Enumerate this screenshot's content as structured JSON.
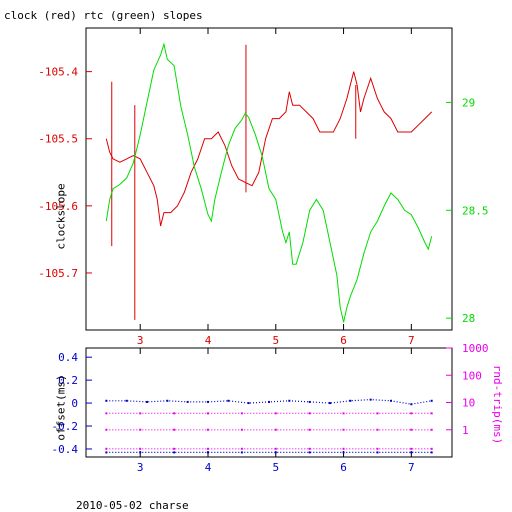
{
  "page": {
    "title": "clock (red) rtc (green) slopes",
    "footer": "2010-05-02 charse"
  },
  "colors": {
    "clock": "#dd0000",
    "rtc": "#00dd00",
    "offset": "#0000cc",
    "rndtrip": "#ee00ee",
    "axis": "#000000"
  },
  "chart_data": [
    {
      "type": "line",
      "title": "clock (red) rtc (green) slopes",
      "xlabel": "",
      "ylabel": "clockslope",
      "xlim": [
        2.2,
        7.6
      ],
      "ylim": [
        -105.785,
        -105.335
      ],
      "y2lim": [
        27.945,
        29.345
      ],
      "x_ticks": [
        3,
        4,
        5,
        6,
        7
      ],
      "y_ticks": [
        -105.4,
        -105.5,
        -105.6,
        -105.7
      ],
      "y2_ticks": [
        29,
        28.5,
        28
      ],
      "series": [
        {
          "name": "clock",
          "axis": "left",
          "x": [
            2.5,
            2.55,
            2.6,
            2.7,
            2.8,
            2.9,
            3.0,
            3.05,
            3.1,
            3.15,
            3.2,
            3.25,
            3.3,
            3.35,
            3.45,
            3.55,
            3.65,
            3.75,
            3.85,
            3.95,
            4.05,
            4.15,
            4.25,
            4.35,
            4.45,
            4.55,
            4.65,
            4.75,
            4.85,
            4.95,
            5.05,
            5.15,
            5.2,
            5.25,
            5.35,
            5.45,
            5.55,
            5.65,
            5.75,
            5.85,
            5.95,
            6.05,
            6.1,
            6.15,
            6.2,
            6.25,
            6.3,
            6.4,
            6.5,
            6.6,
            6.7,
            6.8,
            6.9,
            7.0,
            7.1,
            7.2,
            7.3
          ],
          "y": [
            -105.5,
            -105.52,
            -105.53,
            -105.535,
            -105.53,
            -105.525,
            -105.53,
            -105.54,
            -105.55,
            -105.56,
            -105.57,
            -105.59,
            -105.63,
            -105.61,
            -105.61,
            -105.6,
            -105.58,
            -105.55,
            -105.53,
            -105.5,
            -105.5,
            -105.49,
            -105.51,
            -105.54,
            -105.56,
            -105.565,
            -105.57,
            -105.55,
            -105.5,
            -105.47,
            -105.47,
            -105.46,
            -105.43,
            -105.45,
            -105.45,
            -105.46,
            -105.47,
            -105.49,
            -105.49,
            -105.49,
            -105.47,
            -105.44,
            -105.42,
            -105.4,
            -105.42,
            -105.46,
            -105.44,
            -105.41,
            -105.44,
            -105.46,
            -105.47,
            -105.49,
            -105.49,
            -105.49,
            -105.48,
            -105.47,
            -105.46
          ],
          "spikes": [
            {
              "x": 2.58,
              "y_from": -105.66,
              "y_to": -105.415
            },
            {
              "x": 2.92,
              "y_from": -105.77,
              "y_to": -105.45
            },
            {
              "x": 4.56,
              "y_from": -105.58,
              "y_to": -105.36
            },
            {
              "x": 6.18,
              "y_from": -105.5,
              "y_to": -105.42
            }
          ]
        },
        {
          "name": "rtc",
          "axis": "right",
          "x": [
            2.5,
            2.55,
            2.6,
            2.7,
            2.8,
            2.9,
            3.0,
            3.1,
            3.2,
            3.3,
            3.35,
            3.4,
            3.5,
            3.6,
            3.7,
            3.8,
            3.9,
            4.0,
            4.05,
            4.1,
            4.2,
            4.3,
            4.4,
            4.5,
            4.55,
            4.6,
            4.7,
            4.8,
            4.9,
            5.0,
            5.1,
            5.15,
            5.2,
            5.25,
            5.3,
            5.4,
            5.5,
            5.6,
            5.7,
            5.8,
            5.9,
            5.95,
            6.0,
            6.05,
            6.1,
            6.2,
            6.3,
            6.4,
            6.5,
            6.6,
            6.7,
            6.8,
            6.9,
            7.0,
            7.1,
            7.2,
            7.25,
            7.3
          ],
          "y": [
            28.45,
            28.55,
            28.6,
            28.62,
            28.65,
            28.72,
            28.85,
            29.0,
            29.15,
            29.22,
            29.27,
            29.2,
            29.17,
            28.98,
            28.85,
            28.7,
            28.6,
            28.48,
            28.45,
            28.55,
            28.68,
            28.8,
            28.88,
            28.92,
            28.95,
            28.93,
            28.85,
            28.75,
            28.6,
            28.55,
            28.4,
            28.35,
            28.4,
            28.25,
            28.25,
            28.35,
            28.5,
            28.55,
            28.5,
            28.35,
            28.2,
            28.05,
            27.98,
            28.05,
            28.1,
            28.18,
            28.3,
            28.4,
            28.45,
            28.52,
            28.58,
            28.55,
            28.5,
            28.48,
            28.42,
            28.35,
            28.32,
            28.38
          ]
        }
      ]
    },
    {
      "type": "scatter",
      "xlabel": "",
      "ylabel": "offset(ms)",
      "y2label": "rnd-trip(ms)",
      "xlim": [
        2.2,
        7.6
      ],
      "ylim": [
        -0.47,
        0.48
      ],
      "y2lim": [
        0.1,
        1000
      ],
      "y2_scale": "log",
      "x_ticks": [
        3,
        4,
        5,
        6,
        7
      ],
      "y_ticks": [
        0.4,
        0.2,
        0,
        -0.2,
        -0.4
      ],
      "y2_ticks": [
        1000,
        100,
        10,
        1
      ],
      "series": [
        {
          "name": "offset",
          "axis": "left",
          "x": [
            2.5,
            2.8,
            3.1,
            3.4,
            3.7,
            4.0,
            4.3,
            4.6,
            4.9,
            5.2,
            5.5,
            5.8,
            6.1,
            6.4,
            6.7,
            7.0,
            7.3
          ],
          "y": [
            0.02,
            0.02,
            0.01,
            0.02,
            0.01,
            0.01,
            0.02,
            0.0,
            0.01,
            0.02,
            0.01,
            0.0,
            0.02,
            0.03,
            0.02,
            -0.01,
            0.02
          ]
        },
        {
          "name": "offset-lower",
          "axis": "left",
          "x": [
            2.5,
            3.0,
            3.5,
            4.0,
            4.5,
            5.0,
            5.5,
            6.0,
            6.5,
            7.0,
            7.3
          ],
          "y": [
            -0.43,
            -0.43,
            -0.43,
            -0.43,
            -0.43,
            -0.43,
            -0.43,
            -0.43,
            -0.43,
            -0.43,
            -0.43
          ]
        },
        {
          "name": "rnd-trip",
          "axis": "right",
          "x": [
            2.5,
            3.0,
            3.5,
            4.0,
            4.5,
            5.0,
            5.5,
            6.0,
            6.5,
            7.0,
            7.3
          ],
          "y": [
            4,
            4,
            4,
            4,
            4,
            4,
            4,
            4,
            4,
            4,
            4
          ]
        },
        {
          "name": "rnd-trip-mid",
          "axis": "right",
          "x": [
            2.5,
            3.0,
            3.5,
            4.0,
            4.5,
            5.0,
            5.5,
            6.0,
            6.5,
            7.0,
            7.3
          ],
          "y": [
            1,
            1,
            1,
            1,
            1,
            1,
            1,
            1,
            1,
            1,
            1
          ]
        },
        {
          "name": "rnd-trip-low",
          "axis": "right",
          "x": [
            2.5,
            3.0,
            3.5,
            4.0,
            4.5,
            5.0,
            5.5,
            6.0,
            6.5,
            7.0,
            7.3
          ],
          "y": [
            0.2,
            0.2,
            0.2,
            0.2,
            0.2,
            0.2,
            0.2,
            0.2,
            0.2,
            0.2,
            0.2
          ]
        }
      ]
    }
  ]
}
